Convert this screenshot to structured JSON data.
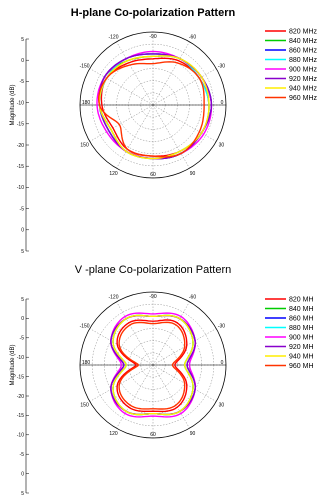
{
  "chart_data": [
    {
      "type": "polar-line",
      "title": "H-plane Co-polarization Pattern",
      "ylabel": "Magnitude (dB)",
      "rlim": [
        -25,
        5
      ],
      "r_ticks": [
        "5",
        "0",
        "-5",
        "-10",
        "-15",
        "-20",
        "-15",
        "-10",
        "-5",
        "0",
        "5"
      ],
      "angle_labels": [
        "-90",
        "-120",
        "-60",
        "-150",
        "-30",
        "180",
        "0",
        "150",
        "30",
        "120",
        "90",
        "60"
      ],
      "angle_deg": [
        0,
        30,
        60,
        90,
        120,
        150,
        180,
        210,
        240,
        270,
        300,
        330
      ],
      "series": [
        {
          "name": "820 MHz",
          "color": "#ff0000",
          "values": [
            -6,
            -4,
            -3,
            -2,
            -2,
            -3,
            -4,
            -4,
            -6,
            -4,
            -3,
            -5
          ]
        },
        {
          "name": "840 MHz",
          "color": "#00cc00",
          "values": [
            -5,
            -3,
            -2,
            -1,
            -2,
            -2,
            -3,
            -3,
            -5,
            -3,
            -2,
            -4
          ]
        },
        {
          "name": "860 MHz",
          "color": "#0000ff",
          "values": [
            -4,
            -3,
            -2,
            -1,
            -2,
            -2,
            -3,
            -3,
            -4,
            -3,
            -2,
            -3
          ]
        },
        {
          "name": "880 MHz",
          "color": "#00ffff",
          "values": [
            -4,
            -3,
            -3,
            -2,
            -2,
            -3,
            -3,
            -3,
            -4,
            -3,
            -3,
            -3
          ]
        },
        {
          "name": "900 MHz",
          "color": "#ff00ff",
          "values": [
            -3,
            -3,
            -2,
            -1,
            -1,
            -2,
            -3,
            -3,
            -3,
            -2,
            -2,
            -3
          ]
        },
        {
          "name": "920 MHz",
          "color": "#8800cc",
          "values": [
            -4,
            -3,
            -2,
            -1,
            -2,
            -2,
            -3,
            -3,
            -4,
            -3,
            -2,
            -3
          ]
        },
        {
          "name": "940 MHz",
          "color": "#ffee00",
          "values": [
            -5,
            -3,
            -2,
            -2,
            -2,
            -3,
            -3,
            -3,
            -5,
            -3,
            -3,
            -4
          ]
        },
        {
          "name": "960 MHz",
          "color": "#ff3300",
          "values": [
            -8,
            -5,
            -3,
            -4,
            -3,
            -2,
            -4,
            -4,
            -9,
            -3,
            -3,
            -6
          ]
        }
      ]
    },
    {
      "type": "polar-line",
      "title": "V -plane Co-polarization Pattern",
      "ylabel": "Magnitude (dB)",
      "rlim": [
        -25,
        5
      ],
      "r_ticks": [
        "5",
        "0",
        "-5",
        "-10",
        "-15",
        "-20",
        "-15",
        "-10",
        "-5",
        "0",
        "5"
      ],
      "angle_labels": [
        "-90",
        "-120",
        "-60",
        "-150",
        "-30",
        "180",
        "0",
        "150",
        "30",
        "120",
        "90",
        "60"
      ],
      "angle_deg": [
        0,
        30,
        60,
        90,
        120,
        150,
        180,
        210,
        240,
        270,
        300,
        330
      ],
      "series": [
        {
          "name": "820 MHz",
          "color": "#ff0000",
          "values": [
            -7,
            -5,
            -9,
            -16,
            -9,
            -5,
            -6,
            -5,
            -8,
            -18,
            -8,
            -5
          ]
        },
        {
          "name": "840 MHz",
          "color": "#00cc00",
          "values": [
            -5,
            -3,
            -6,
            -12,
            -6,
            -3,
            -5,
            -3,
            -6,
            -14,
            -6,
            -3
          ]
        },
        {
          "name": "860 MHz",
          "color": "#0000ff",
          "values": [
            -5,
            -3,
            -5,
            -11,
            -5,
            -3,
            -5,
            -3,
            -5,
            -13,
            -5,
            -3
          ]
        },
        {
          "name": "880 MHz",
          "color": "#00ffff",
          "values": [
            -5,
            -3,
            -6,
            -12,
            -6,
            -3,
            -5,
            -3,
            -6,
            -14,
            -6,
            -3
          ]
        },
        {
          "name": "900 MHz",
          "color": "#ff00ff",
          "values": [
            -4,
            -2,
            -5,
            -10,
            -5,
            -2,
            -4,
            -2,
            -5,
            -12,
            -5,
            -2
          ]
        },
        {
          "name": "920 MHz",
          "color": "#8800cc",
          "values": [
            -5,
            -3,
            -5,
            -11,
            -5,
            -3,
            -5,
            -3,
            -5,
            -13,
            -5,
            -3
          ]
        },
        {
          "name": "940 MHz",
          "color": "#ffee00",
          "values": [
            -5,
            -3,
            -6,
            -12,
            -6,
            -3,
            -5,
            -3,
            -6,
            -14,
            -6,
            -3
          ]
        },
        {
          "name": "960 MHz",
          "color": "#ff3300",
          "values": [
            -8,
            -6,
            -10,
            -17,
            -10,
            -6,
            -7,
            -6,
            -9,
            -19,
            -9,
            -6
          ]
        }
      ]
    }
  ],
  "legend_labels": [
    "820 MHz",
    "840 MHz",
    "860 MHz",
    "880 MHz",
    "900 MHz",
    "920 MHz",
    "940 MHz",
    "960 MHz"
  ],
  "legend_visible_labels": [
    "820 MH",
    "840 MH",
    "860 MH",
    "880 MH",
    "900 MH",
    "920 MH",
    "940 MH",
    "960 MH"
  ]
}
